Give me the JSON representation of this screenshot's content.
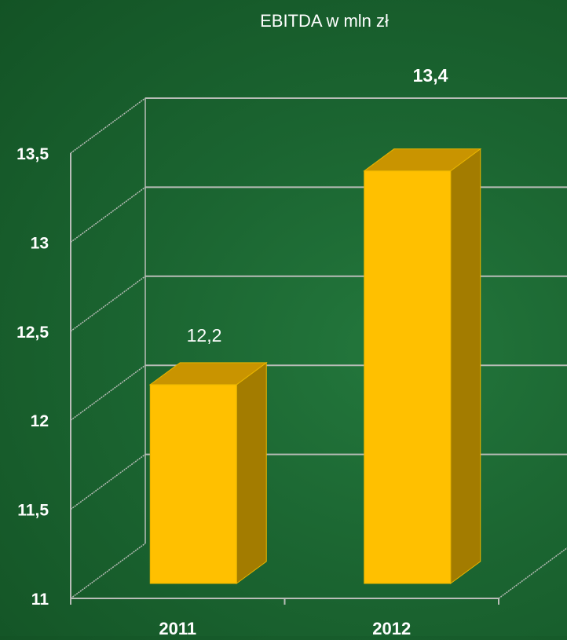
{
  "chart_data": {
    "type": "bar",
    "title": "EBITDA w mln zł",
    "xlabel": "",
    "ylabel": "",
    "categories": [
      "2011",
      "2012"
    ],
    "values": [
      12.2,
      13.4
    ],
    "value_labels": [
      "12,2",
      "13,4"
    ],
    "ylim": [
      11,
      13.5
    ],
    "yticks": [
      "11",
      "11,5",
      "12",
      "12,5",
      "13",
      "13,5"
    ],
    "grid": true,
    "style": "3d",
    "bar_colors": {
      "front": "#ffc000",
      "side": "#a37c00",
      "top": "#c99400"
    }
  }
}
